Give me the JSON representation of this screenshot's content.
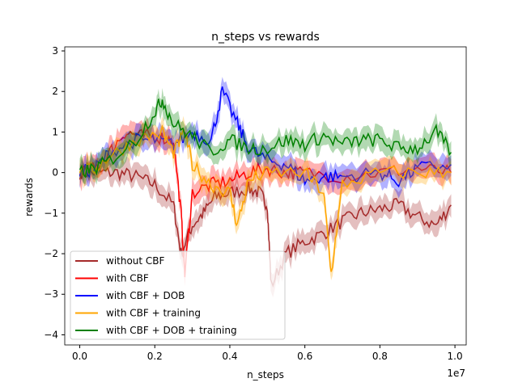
{
  "chart_data": {
    "type": "line",
    "title": "n_steps vs rewards",
    "xlabel": "n_steps",
    "ylabel": "rewards",
    "x_offset_label": "1e7",
    "xlim": [
      -0.04,
      1.03
    ],
    "ylim": [
      -4.25,
      3.1
    ],
    "xticks": [
      0.0,
      0.2,
      0.4,
      0.6,
      0.8,
      1.0
    ],
    "xtick_labels": [
      "0.0",
      "0.2",
      "0.4",
      "0.6",
      "0.8",
      "1.0"
    ],
    "yticks": [
      -4,
      -3,
      -2,
      -1,
      0,
      1,
      2,
      3
    ],
    "ytick_labels": [
      "−4",
      "−3",
      "−2",
      "−1",
      "0",
      "1",
      "2",
      "3"
    ],
    "grid": false,
    "legend_position": "lower-left",
    "band_halfwidth": 0.3,
    "series": [
      {
        "name": "without CBF",
        "color": "#a52a2a",
        "x": [
          0.0,
          0.05,
          0.1,
          0.15,
          0.2,
          0.25,
          0.27,
          0.3,
          0.33,
          0.36,
          0.4,
          0.45,
          0.48,
          0.5,
          0.51,
          0.55,
          0.6,
          0.65,
          0.7,
          0.75,
          0.8,
          0.85,
          0.9,
          0.95,
          0.99
        ],
        "y": [
          0.0,
          0.0,
          0.0,
          -0.1,
          -0.3,
          -0.8,
          -2.0,
          -1.3,
          -1.0,
          -0.6,
          -0.5,
          -0.4,
          -0.5,
          -0.8,
          -2.8,
          -2.0,
          -1.7,
          -1.5,
          -1.2,
          -1.0,
          -0.9,
          -0.8,
          -1.1,
          -1.3,
          -0.8
        ]
      },
      {
        "name": "with CBF",
        "color": "#ff0000",
        "x": [
          0.0,
          0.04,
          0.08,
          0.12,
          0.16,
          0.2,
          0.25,
          0.27,
          0.28,
          0.3,
          0.35,
          0.4,
          0.45,
          0.5,
          0.55,
          0.6,
          0.7,
          0.8,
          0.9,
          0.99
        ],
        "y": [
          0.0,
          0.1,
          0.5,
          1.0,
          0.9,
          0.9,
          0.8,
          -1.0,
          -2.5,
          -0.5,
          -0.3,
          -0.2,
          0.0,
          0.1,
          0.0,
          0.0,
          -0.1,
          0.0,
          0.1,
          0.0
        ]
      },
      {
        "name": "with CBF + DOB",
        "color": "#0000ff",
        "x": [
          0.0,
          0.04,
          0.08,
          0.15,
          0.2,
          0.25,
          0.3,
          0.35,
          0.38,
          0.42,
          0.45,
          0.5,
          0.55,
          0.6,
          0.65,
          0.7,
          0.8,
          0.85,
          0.9,
          0.99
        ],
        "y": [
          0.0,
          0.1,
          0.5,
          0.8,
          0.8,
          0.7,
          1.0,
          0.8,
          2.0,
          1.2,
          0.6,
          0.3,
          0.2,
          -0.2,
          -0.1,
          -0.1,
          0.0,
          -0.2,
          0.1,
          0.2
        ]
      },
      {
        "name": "with CBF + training",
        "color": "#ffa500",
        "x": [
          0.0,
          0.04,
          0.08,
          0.15,
          0.22,
          0.25,
          0.28,
          0.3,
          0.35,
          0.4,
          0.42,
          0.45,
          0.5,
          0.6,
          0.65,
          0.67,
          0.7,
          0.8,
          0.9,
          0.99
        ],
        "y": [
          0.0,
          0.1,
          0.4,
          0.8,
          1.0,
          0.5,
          1.0,
          0.2,
          -0.3,
          -0.5,
          -1.3,
          -0.2,
          0.0,
          0.0,
          -0.5,
          -2.5,
          -0.3,
          0.0,
          0.0,
          0.0
        ]
      },
      {
        "name": "with CBF + DOB + training",
        "color": "#008000",
        "x": [
          0.0,
          0.04,
          0.08,
          0.15,
          0.2,
          0.22,
          0.25,
          0.3,
          0.35,
          0.4,
          0.45,
          0.5,
          0.55,
          0.6,
          0.65,
          0.7,
          0.75,
          0.8,
          0.85,
          0.9,
          0.95,
          0.99
        ],
        "y": [
          0.0,
          0.1,
          0.3,
          0.8,
          1.5,
          1.8,
          1.2,
          0.9,
          0.5,
          0.8,
          0.6,
          0.6,
          0.8,
          0.7,
          0.9,
          0.7,
          0.8,
          0.8,
          0.6,
          0.6,
          1.0,
          0.5
        ]
      }
    ]
  }
}
